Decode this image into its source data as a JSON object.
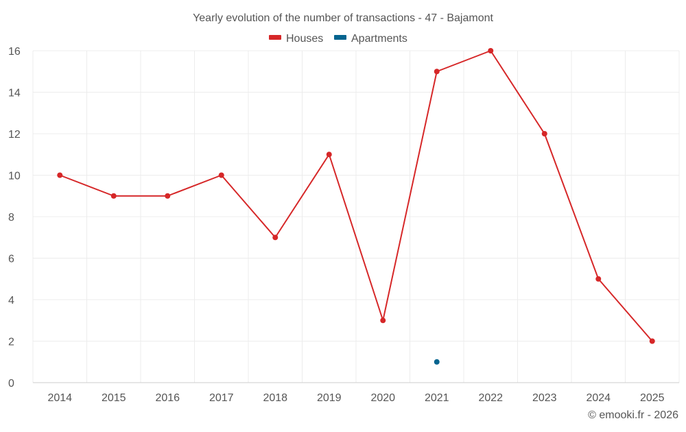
{
  "chart_data": {
    "type": "line",
    "title": "Yearly evolution of the number of transactions - 47 - Bajamont",
    "categories": [
      "2014",
      "2015",
      "2016",
      "2017",
      "2018",
      "2019",
      "2020",
      "2021",
      "2022",
      "2023",
      "2024",
      "2025"
    ],
    "series": [
      {
        "name": "Houses",
        "color": "#d62728",
        "values": [
          10,
          9,
          9,
          10,
          7,
          11,
          3,
          15,
          16,
          12,
          5,
          2
        ]
      },
      {
        "name": "Apartments",
        "color": "#05648f",
        "values": [
          null,
          null,
          null,
          null,
          null,
          null,
          null,
          1,
          null,
          null,
          null,
          null
        ]
      }
    ],
    "ylim": [
      0,
      16
    ],
    "yticks": [
      "0",
      "2",
      "4",
      "6",
      "8",
      "10",
      "12",
      "14",
      "16"
    ],
    "grid": true,
    "legend_position": "top-center",
    "xlabel": "",
    "ylabel": ""
  },
  "credit": "© emooki.fr - 2026"
}
